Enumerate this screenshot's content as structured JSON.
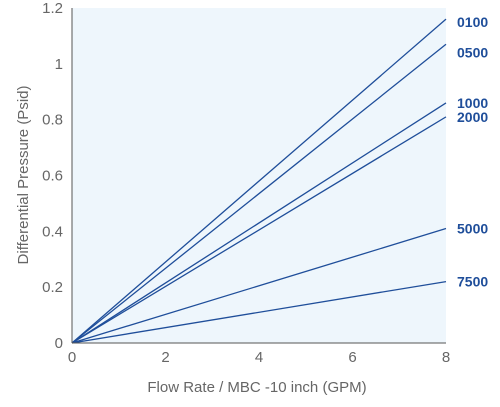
{
  "chart_data": {
    "type": "line",
    "title": "",
    "xlabel": "Flow Rate / MBC -10 inch (GPM)",
    "ylabel": "Differential Pressure (Psid)",
    "xlim": [
      0,
      8
    ],
    "ylim": [
      0,
      1.2
    ],
    "x_ticks": [
      "0",
      "2",
      "4",
      "6",
      "8"
    ],
    "y_ticks": [
      "0",
      "0.2",
      "0.4",
      "0.6",
      "0.8",
      "1",
      "1.2"
    ],
    "grid": false,
    "series": [
      {
        "name": "0100",
        "x": [
          0,
          8
        ],
        "y": [
          0,
          1.16
        ]
      },
      {
        "name": "0500",
        "x": [
          0,
          8
        ],
        "y": [
          0,
          1.07
        ]
      },
      {
        "name": "1000",
        "x": [
          0,
          8
        ],
        "y": [
          0,
          0.86
        ]
      },
      {
        "name": "2000",
        "x": [
          0,
          8
        ],
        "y": [
          0,
          0.81
        ]
      },
      {
        "name": "5000",
        "x": [
          0,
          8
        ],
        "y": [
          0,
          0.41
        ]
      },
      {
        "name": "7500",
        "x": [
          0,
          8
        ],
        "y": [
          0,
          0.22
        ]
      }
    ],
    "colors": {
      "line": "#1f4e9a",
      "plot_background": "#eef6fc",
      "axis": "#555555",
      "label": "#1f4e9a"
    }
  }
}
